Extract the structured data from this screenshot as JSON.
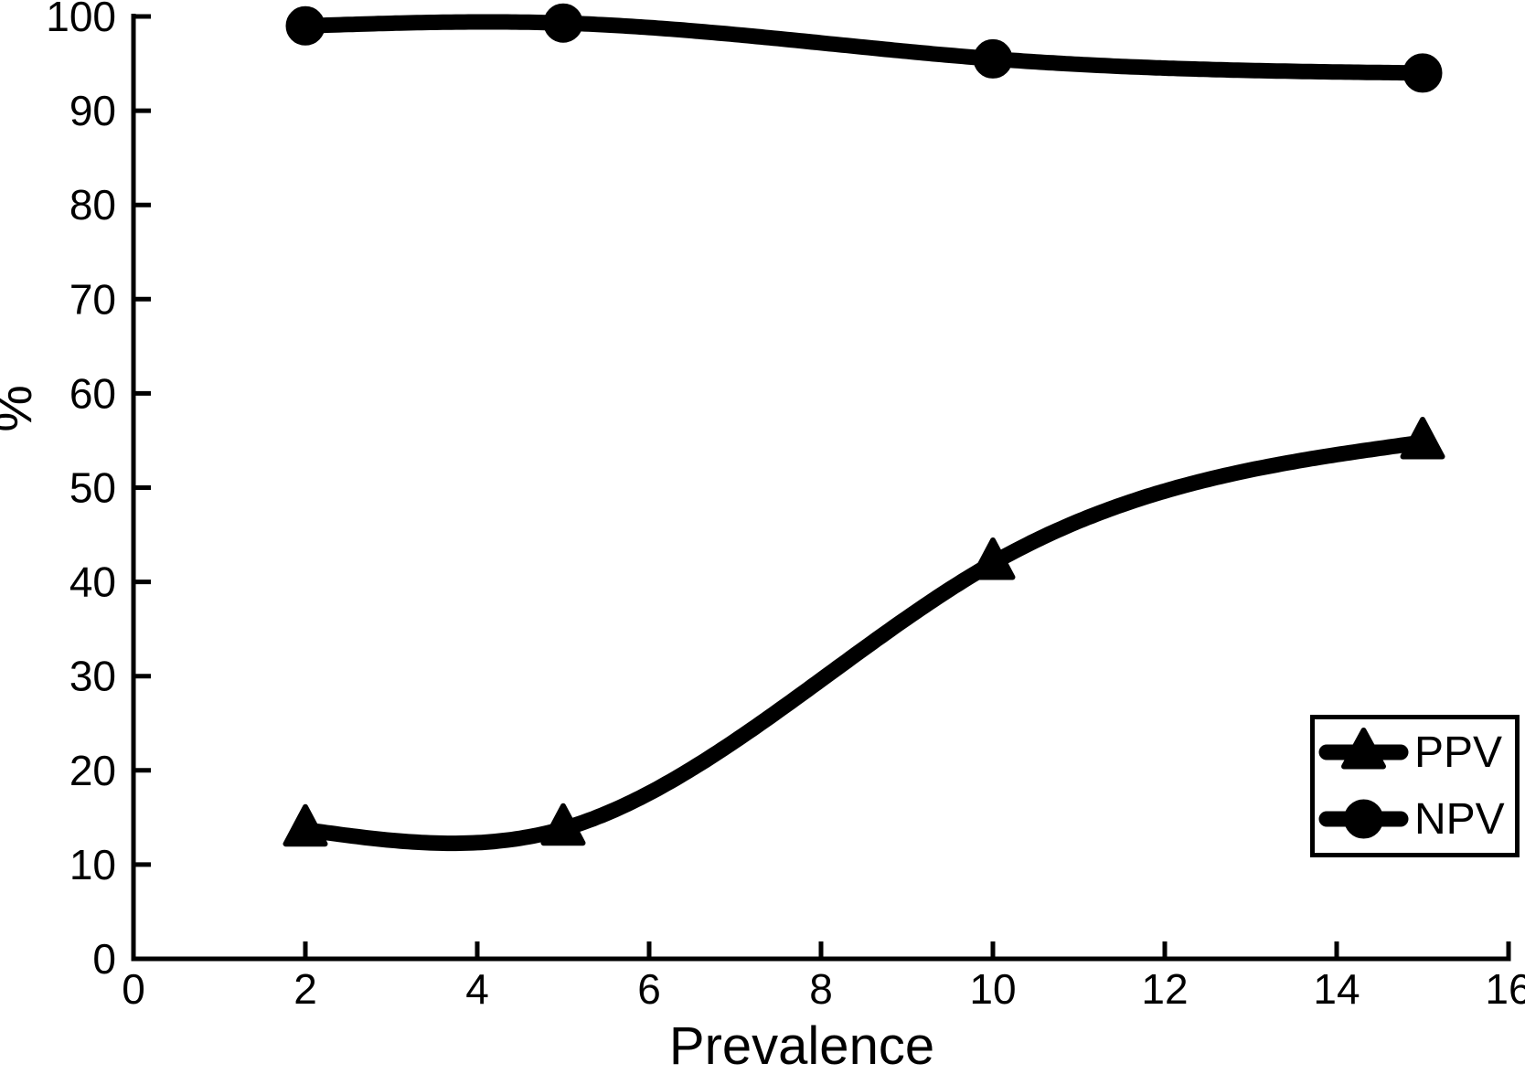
{
  "chart_data": {
    "type": "line",
    "title": "",
    "xlabel": "Prevalence",
    "ylabel": "%",
    "x": [
      2,
      5,
      10,
      15
    ],
    "series": [
      {
        "name": "PPV",
        "marker": "triangle-up",
        "values": [
          13.7,
          13.8,
          42,
          54.8
        ]
      },
      {
        "name": "NPV",
        "marker": "circle",
        "values": [
          99,
          99.3,
          95.5,
          94
        ]
      }
    ],
    "xlim": [
      0,
      16
    ],
    "ylim": [
      0,
      100
    ],
    "x_ticks": [
      0,
      2,
      4,
      6,
      8,
      10,
      12,
      14,
      16
    ],
    "y_ticks": [
      0,
      10,
      20,
      30,
      40,
      50,
      60,
      70,
      80,
      90,
      100
    ],
    "grid": false,
    "curve_style": "smooth-spline",
    "legend_position": "lower-right",
    "line_color": "#000000",
    "background_color": "#ffffff"
  }
}
